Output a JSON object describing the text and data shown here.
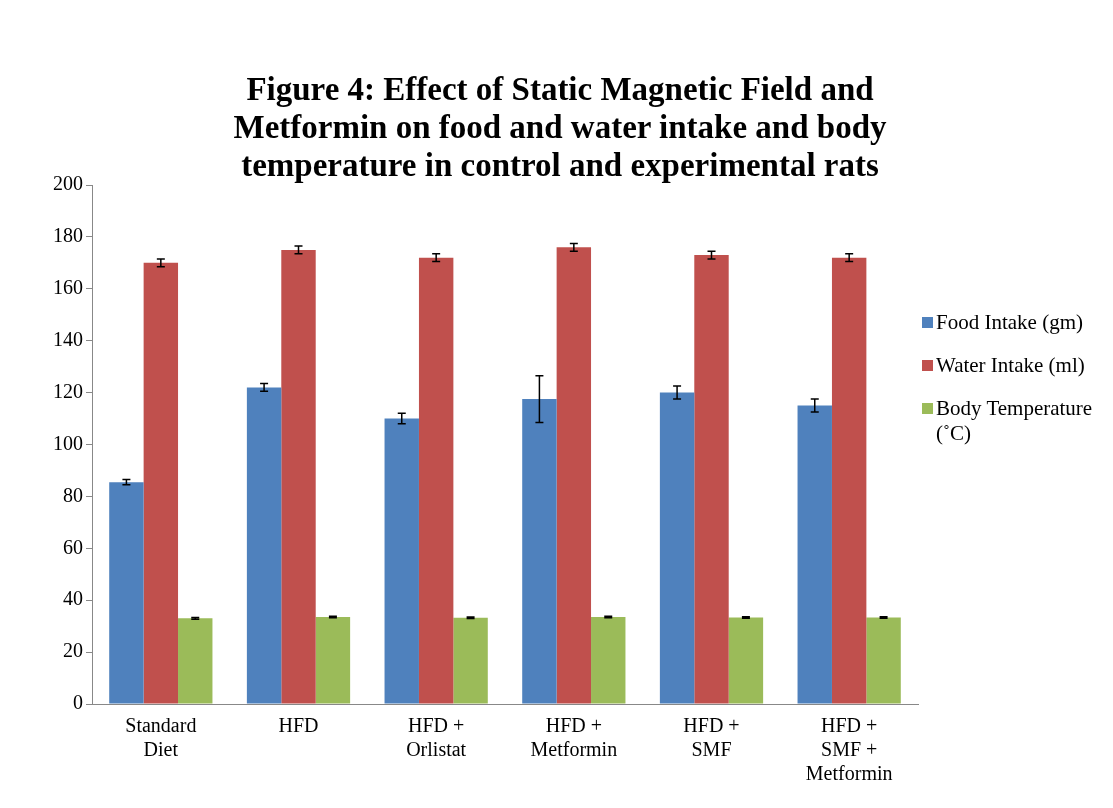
{
  "chart_data": {
    "type": "bar",
    "title": "Figure 4: Effect of Static Magnetic Field and Metformin on food and water intake and body temperature in control and experimental rats",
    "categories": [
      "Standard Diet",
      "HFD",
      "HFD + Orlistat",
      "HFD + Metformin",
      "HFD + SMF",
      "HFD + SMF + Metformin"
    ],
    "series": [
      {
        "name": "Food Intake (gm)",
        "color": "#4f81bd",
        "values": [
          85.5,
          122,
          110,
          117.5,
          120,
          115
        ],
        "errors": [
          1,
          1.5,
          2,
          9,
          2.5,
          2.5
        ]
      },
      {
        "name": "Water Intake (ml)",
        "color": "#c0504d",
        "values": [
          170,
          175,
          172,
          176,
          173,
          172
        ],
        "errors": [
          1.5,
          1.5,
          1.5,
          1.5,
          1.5,
          1.5
        ]
      },
      {
        "name": "Body Temperature (˚C)",
        "color": "#9bbb59",
        "values": [
          33,
          33.5,
          33.2,
          33.5,
          33.3,
          33.3
        ],
        "errors": [
          0.3,
          0.3,
          0.3,
          0.3,
          0.3,
          0.3
        ]
      }
    ],
    "ylim": [
      0,
      200
    ],
    "yticks": [
      0,
      20,
      40,
      60,
      80,
      100,
      120,
      140,
      160,
      180,
      200
    ],
    "grid": false,
    "legend": "right"
  }
}
